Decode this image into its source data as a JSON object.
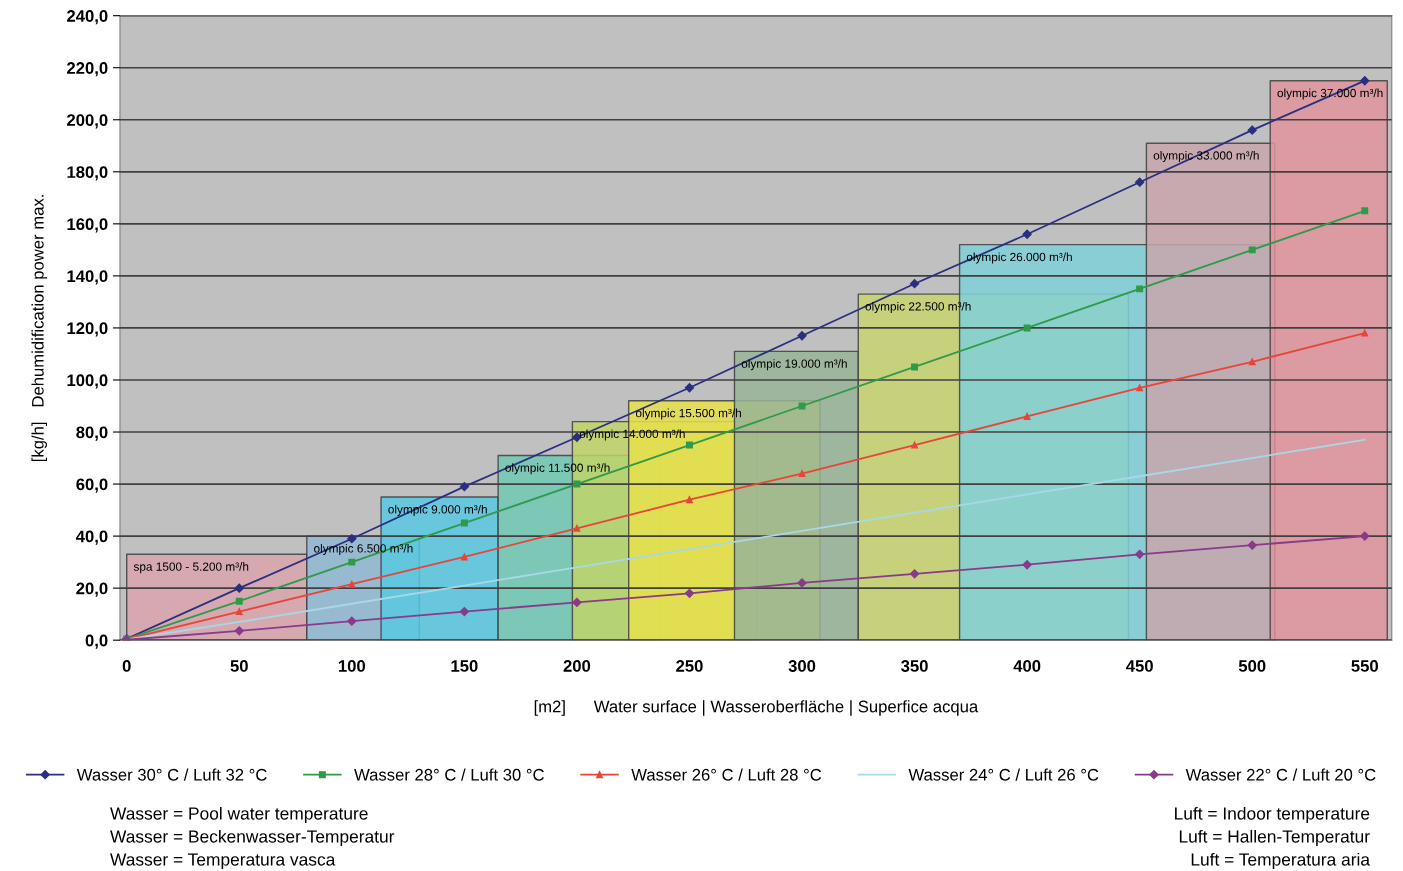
{
  "chart_data": {
    "type": "line",
    "xlabel": "[m2]      Water surface | Wasseroberfläche | Superfice acqua",
    "ylabel": "[kg/h]   Dehumidification power max.",
    "xlim": [
      -3,
      562
    ],
    "xticks": [
      0,
      50,
      100,
      150,
      200,
      250,
      300,
      350,
      400,
      450,
      500,
      550
    ],
    "ylim": [
      0,
      240
    ],
    "yticks": [
      {
        "value": 0,
        "label": "0,0"
      },
      {
        "value": 20,
        "label": "20,0"
      },
      {
        "value": 40,
        "label": "40,0"
      },
      {
        "value": 60,
        "label": "60,0"
      },
      {
        "value": 80,
        "label": "80,0"
      },
      {
        "value": 100,
        "label": "100,0"
      },
      {
        "value": 120,
        "label": "120,0"
      },
      {
        "value": 140,
        "label": "140,0"
      },
      {
        "value": 160,
        "label": "160,0"
      },
      {
        "value": 180,
        "label": "180,0"
      },
      {
        "value": 200,
        "label": "200,0"
      },
      {
        "value": 220,
        "label": "220,0"
      },
      {
        "value": 240,
        "label": "240,0"
      }
    ],
    "grid": "y",
    "legend": "bottom",
    "series": [
      {
        "type": "area",
        "name": "spa 1500 - 5.200 m³/h",
        "color": "#d8a4ac",
        "x": [
          0,
          80
        ],
        "values": [
          33,
          33
        ]
      },
      {
        "type": "area",
        "name": "olympic 6.500 m³/h",
        "color": "#90b8d4",
        "x": [
          80,
          130
        ],
        "values": [
          40,
          40
        ]
      },
      {
        "type": "area",
        "name": "olympic 9.000 m³/h",
        "color": "#58c8e0",
        "x": [
          113,
          165
        ],
        "values": [
          55,
          55
        ]
      },
      {
        "type": "area",
        "name": "olympic 11.500 m³/h",
        "color": "#70c8b4",
        "x": [
          165,
          237
        ],
        "values": [
          71,
          71
        ]
      },
      {
        "type": "area",
        "name": "olympic 14.000 m³/h",
        "color": "#c0d468",
        "x": [
          198,
          280
        ],
        "values": [
          84,
          84
        ]
      },
      {
        "type": "area",
        "name": "olympic 15.500 m³/h",
        "color": "#e8e04c",
        "x": [
          223,
          308
        ],
        "values": [
          92,
          92
        ]
      },
      {
        "type": "area",
        "name": "olympic 19.000 m³/h",
        "color": "#98b498",
        "x": [
          270,
          325
        ],
        "values": [
          111,
          111
        ]
      },
      {
        "type": "area",
        "name": "olympic 22.500 m³/h",
        "color": "#c8d470",
        "x": [
          325,
          445
        ],
        "values": [
          133,
          133
        ]
      },
      {
        "type": "area",
        "name": "olympic 26.000 m³/h",
        "color": "#80d0d8",
        "x": [
          370,
          510
        ],
        "values": [
          152,
          152
        ]
      },
      {
        "type": "area",
        "name": "olympic 33.000 m³/h",
        "color": "#c8a4ac",
        "x": [
          453,
          510
        ],
        "values": [
          191,
          191
        ]
      },
      {
        "type": "area",
        "name": "olympic 37.000 m³/h",
        "color": "#e0949c",
        "x": [
          508,
          560
        ],
        "values": [
          215,
          215
        ]
      },
      {
        "name": "Wasser 30° C / Luft 32 °C",
        "color": "#2b2f80",
        "marker": "diamond",
        "x": [
          0,
          50,
          100,
          150,
          200,
          250,
          300,
          350,
          400,
          450,
          500,
          550
        ],
        "values": [
          0.5,
          20,
          39,
          59,
          78,
          97,
          117,
          137,
          156,
          176,
          196,
          215
        ]
      },
      {
        "name": "Wasser 28° C / Luft 30 °C",
        "color": "#2e9a4a",
        "marker": "square",
        "x": [
          0,
          50,
          100,
          150,
          200,
          250,
          300,
          350,
          400,
          450,
          500,
          550
        ],
        "values": [
          0.5,
          15,
          30,
          45,
          60,
          75,
          90,
          105,
          120,
          135,
          150,
          165
        ]
      },
      {
        "name": "Wasser 26° C / Luft 28 °C",
        "color": "#e8453a",
        "marker": "triangle",
        "x": [
          0,
          50,
          100,
          150,
          200,
          250,
          300,
          350,
          400,
          450,
          500,
          550
        ],
        "values": [
          0.4,
          11,
          21.5,
          32,
          43,
          54,
          64,
          75,
          86,
          97,
          107,
          118
        ]
      },
      {
        "name": "Wasser 24° C / Luft 26 °C",
        "color": "#a8d8e8",
        "marker": "none",
        "x": [
          0,
          50,
          100,
          150,
          200,
          250,
          300,
          350,
          400,
          450,
          500,
          550
        ],
        "values": [
          0.3,
          7,
          14,
          21,
          28,
          35,
          42,
          49,
          56,
          63,
          70,
          77
        ]
      },
      {
        "name": "Wasser 22° C / Luft 20 °C",
        "color": "#8a3a8a",
        "marker": "diamond",
        "x": [
          0,
          50,
          100,
          150,
          200,
          250,
          300,
          350,
          400,
          450,
          500,
          550
        ],
        "values": [
          0.2,
          3.6,
          7.3,
          11,
          14.5,
          18,
          22,
          25.5,
          29,
          33,
          36.5,
          40
        ]
      }
    ],
    "annotations": [
      "Wasser = Pool water temperature",
      "Wasser = Beckenwasser-Temperatur",
      "Wasser = Temperatura vasca",
      "Luft = Indoor temperature",
      "Luft = Hallen-Temperatur",
      "Luft = Temperatura aria"
    ]
  }
}
